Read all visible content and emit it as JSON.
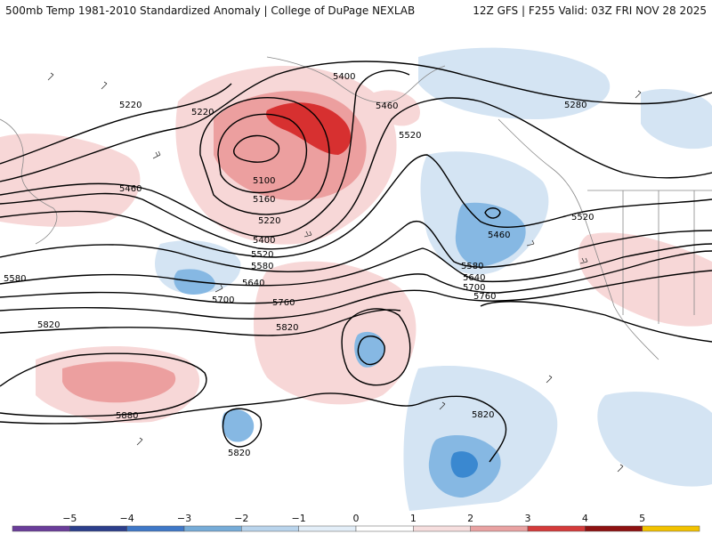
{
  "header": {
    "title_left": "500mb Temp 1981-2010 Standardized Anomaly | College of DuPage NEXLAB",
    "title_right": "12Z GFS | F255 Valid: 03Z FRI NOV 28 2025"
  },
  "contours": [
    {
      "label": "5220",
      "tag": "c-5220-a"
    },
    {
      "label": "5220",
      "tag": "c-5220-b"
    },
    {
      "label": "5400",
      "tag": "c-5400-a"
    },
    {
      "label": "5460",
      "tag": "c-5460-a"
    },
    {
      "label": "5520",
      "tag": "c-5520-a"
    },
    {
      "label": "5280",
      "tag": "c-5280"
    },
    {
      "label": "5460",
      "tag": "c-5460-b"
    },
    {
      "label": "5100",
      "tag": "c-5100"
    },
    {
      "label": "5160",
      "tag": "c-5160"
    },
    {
      "label": "5220",
      "tag": "c-5220-c"
    },
    {
      "label": "5400",
      "tag": "c-5400-b"
    },
    {
      "label": "5520",
      "tag": "c-5520-b"
    },
    {
      "label": "5580",
      "tag": "c-5580-a"
    },
    {
      "label": "5640",
      "tag": "c-5640-a"
    },
    {
      "label": "5700",
      "tag": "c-5700-a"
    },
    {
      "label": "5760",
      "tag": "c-5760-a"
    },
    {
      "label": "5820",
      "tag": "c-5820-a"
    },
    {
      "label": "5820",
      "tag": "c-5820-b"
    },
    {
      "label": "5580",
      "tag": "c-5580-b"
    },
    {
      "label": "5640",
      "tag": "c-5640-b"
    },
    {
      "label": "5700",
      "tag": "c-5700-b"
    },
    {
      "label": "5760",
      "tag": "c-5760-b"
    },
    {
      "label": "5460",
      "tag": "c-5460-c"
    },
    {
      "label": "5520",
      "tag": "c-5520-c"
    },
    {
      "label": "5580",
      "tag": "c-5580-c"
    },
    {
      "label": "5880",
      "tag": "c-5880"
    },
    {
      "label": "5820",
      "tag": "c-5820-c"
    },
    {
      "label": "5820",
      "tag": "c-5820-d"
    }
  ],
  "colorbar": {
    "ticks": [
      "−5",
      "−4",
      "−3",
      "−2",
      "−1",
      "0",
      "1",
      "2",
      "3",
      "4",
      "5"
    ],
    "colors": [
      "#6a3d9a",
      "#2c3f8c",
      "#3f78c8",
      "#76acd8",
      "#b9d4ec",
      "#e3eef8",
      "#ffffff",
      "#f6dede",
      "#e9a2a2",
      "#d43b3b",
      "#8e1212",
      "#f2c200"
    ]
  },
  "colors": {
    "contour": "#000000",
    "coast": "#888888",
    "warm_light": "#f7d7d7",
    "warm_mid": "#ec9f9f",
    "warm_strong": "#d73030",
    "cool_light": "#d4e4f3",
    "cool_mid": "#86b8e3",
    "cool_strong": "#3a88d0"
  }
}
